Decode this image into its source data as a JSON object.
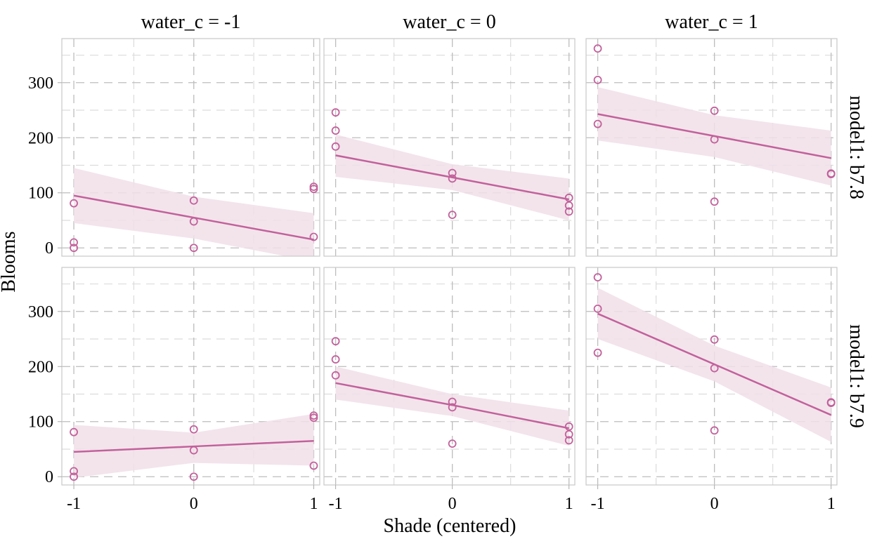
{
  "chart_data": {
    "type": "scatter",
    "title": "",
    "xlabel": "Shade (centered)",
    "ylabel": "Blooms",
    "xlim": [
      -1.1,
      1.05
    ],
    "ylim": [
      -15,
      380
    ],
    "x_ticks": [
      -1,
      0,
      1
    ],
    "x_tick_labels": [
      "-1",
      "0",
      "1"
    ],
    "y_ticks": [
      0,
      100,
      200,
      300
    ],
    "y_tick_labels": [
      "0",
      "100",
      "200",
      "300"
    ],
    "grid": true,
    "colors": {
      "point": "#c2619b",
      "line": "#c2619b",
      "band": "#f1dfe9",
      "grid": "#bdbdbd",
      "panel_border": "#c8c8c8"
    },
    "column_facets": [
      "water_c = -1",
      "water_c = 0",
      "water_c = 1"
    ],
    "row_facets": [
      "model1: b7.8",
      "model1: b7.9"
    ],
    "points": [
      {
        "water": -1,
        "shade": [
          -1,
          -1,
          -1,
          0,
          0,
          0,
          1,
          1,
          1
        ],
        "blooms": [
          81,
          10,
          0,
          86,
          48,
          0,
          111,
          107,
          20
        ]
      },
      {
        "water": 0,
        "shade": [
          -1,
          -1,
          -1,
          0,
          0,
          0,
          1,
          1,
          1
        ],
        "blooms": [
          246,
          213,
          184,
          136,
          126,
          60,
          91,
          77,
          66
        ]
      },
      {
        "water": 1,
        "shade": [
          -1,
          -1,
          -1,
          0,
          0,
          0,
          1,
          1,
          1
        ],
        "blooms": [
          362,
          305,
          225,
          249,
          197,
          84,
          134,
          135,
          135
        ]
      }
    ],
    "fits": [
      {
        "model": "b7.8",
        "panels": [
          {
            "water": -1,
            "x": [
              -1,
              0,
              1
            ],
            "mean": [
              95,
              55,
              15
            ],
            "lower": [
              45,
              17,
              -25
            ],
            "upper": [
              145,
              93,
              63
            ]
          },
          {
            "water": 0,
            "x": [
              -1,
              0,
              1
            ],
            "mean": [
              168,
              128,
              88
            ],
            "lower": [
              129,
              105,
              50
            ],
            "upper": [
              206,
              152,
              126
            ]
          },
          {
            "water": 1,
            "x": [
              -1,
              0,
              1
            ],
            "mean": [
              243,
              203,
              163
            ],
            "lower": [
              195,
              165,
              113
            ],
            "upper": [
              292,
              241,
              213
            ]
          }
        ]
      },
      {
        "model": "b7.9",
        "panels": [
          {
            "water": -1,
            "x": [
              -1,
              0,
              1
            ],
            "mean": [
              45,
              55,
              65
            ],
            "lower": [
              -2,
              25,
              20
            ],
            "upper": [
              94,
              80,
              114
            ]
          },
          {
            "water": 0,
            "x": [
              -1,
              0,
              1
            ],
            "mean": [
              170,
              130,
              88
            ],
            "lower": [
              140,
              110,
              56
            ],
            "upper": [
              200,
              150,
              120
            ]
          },
          {
            "water": 1,
            "x": [
              -1,
              0,
              1
            ],
            "mean": [
              296,
              204,
              112
            ],
            "lower": [
              250,
              173,
              63
            ],
            "upper": [
              343,
              238,
              162
            ]
          }
        ]
      }
    ]
  }
}
